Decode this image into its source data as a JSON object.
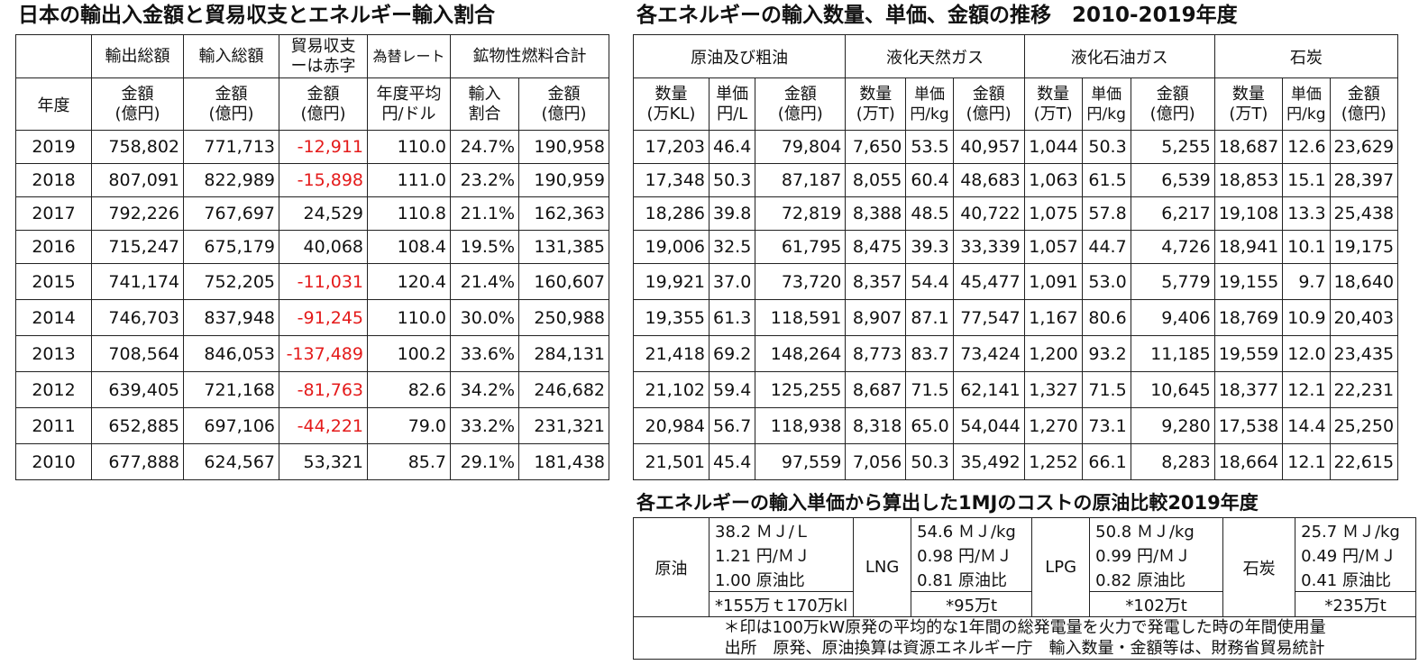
{
  "left_title": "日本の輸出入金額と貿易収支とエネルギー輸入割合",
  "right_title": "各エネルギーの輸入数量、単価、金額の推移　2010-2019年度",
  "bottom_title": "各エネルギーの輸入単価から算出した1MJのコストの原油比較2019年度",
  "left_table": {
    "group_headers": [
      "輸出総額",
      "輸入総額",
      "貿易収支\nーは赤字",
      "為替レート",
      "鉱物性燃料合計"
    ],
    "year_header": "年度",
    "sub_headers": [
      "金額\n(億円)",
      "金額\n(億円)",
      "金額\n(億円)",
      "年度平均\n円/ドル",
      "輸入\n割合",
      "金額\n(億円)"
    ],
    "rows": [
      {
        "year": "2019",
        "exports": "758,802",
        "imports": "771,713",
        "balance": "-12,911",
        "rate": "110.0",
        "share": "24.7%",
        "fuel": "190,958"
      },
      {
        "year": "2018",
        "exports": "807,091",
        "imports": "822,989",
        "balance": "-15,898",
        "rate": "111.0",
        "share": "23.2%",
        "fuel": "190,959"
      },
      {
        "year": "2017",
        "exports": "792,226",
        "imports": "767,697",
        "balance": "24,529",
        "rate": "110.8",
        "share": "21.1%",
        "fuel": "162,363"
      },
      {
        "year": "2016",
        "exports": "715,247",
        "imports": "675,179",
        "balance": "40,068",
        "rate": "108.4",
        "share": "19.5%",
        "fuel": "131,385"
      },
      {
        "year": "2015",
        "exports": "741,174",
        "imports": "752,205",
        "balance": "-11,031",
        "rate": "120.4",
        "share": "21.4%",
        "fuel": "160,607"
      },
      {
        "year": "2014",
        "exports": "746,703",
        "imports": "837,948",
        "balance": "-91,245",
        "rate": "110.0",
        "share": "30.0%",
        "fuel": "250,988"
      },
      {
        "year": "2013",
        "exports": "708,564",
        "imports": "846,053",
        "balance": "-137,489",
        "rate": "100.2",
        "share": "33.6%",
        "fuel": "284,131"
      },
      {
        "year": "2012",
        "exports": "639,405",
        "imports": "721,168",
        "balance": "-81,763",
        "rate": "82.6",
        "share": "34.2%",
        "fuel": "246,682"
      },
      {
        "year": "2011",
        "exports": "652,885",
        "imports": "697,106",
        "balance": "-44,221",
        "rate": "79.0",
        "share": "33.2%",
        "fuel": "231,321"
      },
      {
        "year": "2010",
        "exports": "677,888",
        "imports": "624,567",
        "balance": "53,321",
        "rate": "85.7",
        "share": "29.1%",
        "fuel": "181,438"
      }
    ]
  },
  "right_table": {
    "group_headers": [
      "原油及び粗油",
      "液化天然ガス",
      "液化石油ガス",
      "石炭"
    ],
    "sub_headers": [
      "数量\n(万KL)",
      "単価\n円/L",
      "金額\n(億円)",
      "数量\n(万T)",
      "単価\n円/kg",
      "金額\n(億円)",
      "数量\n(万T)",
      "単価\n円/kg",
      "金額\n(億円)",
      "数量\n(万T)",
      "単価\n円/kg",
      "金額\n(億円)"
    ],
    "rows": [
      [
        "17,203",
        "46.4",
        "79,804",
        "7,650",
        "53.5",
        "40,957",
        "1,044",
        "50.3",
        "5,255",
        "18,687",
        "12.6",
        "23,629"
      ],
      [
        "17,348",
        "50.3",
        "87,187",
        "8,055",
        "60.4",
        "48,683",
        "1,063",
        "61.5",
        "6,539",
        "18,853",
        "15.1",
        "28,397"
      ],
      [
        "18,286",
        "39.8",
        "72,819",
        "8,388",
        "48.5",
        "40,722",
        "1,075",
        "57.8",
        "6,217",
        "19,108",
        "13.3",
        "25,438"
      ],
      [
        "19,006",
        "32.5",
        "61,795",
        "8,475",
        "39.3",
        "33,339",
        "1,057",
        "44.7",
        "4,726",
        "18,941",
        "10.1",
        "19,175"
      ],
      [
        "19,921",
        "37.0",
        "73,720",
        "8,357",
        "54.4",
        "45,477",
        "1,091",
        "53.0",
        "5,779",
        "19,155",
        "9.7",
        "18,640"
      ],
      [
        "19,355",
        "61.3",
        "118,591",
        "8,907",
        "87.1",
        "77,547",
        "1,167",
        "80.6",
        "9,406",
        "18,769",
        "10.9",
        "20,403"
      ],
      [
        "21,418",
        "69.2",
        "148,264",
        "8,773",
        "83.7",
        "73,424",
        "1,200",
        "93.2",
        "11,185",
        "19,559",
        "12.0",
        "23,435"
      ],
      [
        "21,102",
        "59.4",
        "125,255",
        "8,687",
        "71.5",
        "62,141",
        "1,327",
        "71.5",
        "10,645",
        "18,377",
        "12.1",
        "22,231"
      ],
      [
        "20,984",
        "56.7",
        "118,938",
        "8,318",
        "65.0",
        "54,044",
        "1,270",
        "73.1",
        "9,280",
        "17,538",
        "14.4",
        "25,250"
      ],
      [
        "21,501",
        "45.4",
        "97,559",
        "7,056",
        "50.3",
        "35,492",
        "1,252",
        "66.1",
        "8,283",
        "18,664",
        "12.1",
        "22,615"
      ]
    ]
  },
  "cost_table": {
    "items": [
      {
        "name": "原油",
        "energy": "38.2 ＭＪ/Ｌ",
        "cost": "1.21 円/ＭＪ",
        "ratio": "1.00 原油比",
        "note": "*155万ｔ170万kl"
      },
      {
        "name": "LNG",
        "energy": "54.6 ＭＪ/kg",
        "cost": "0.98 円/ＭＪ",
        "ratio": "0.81 原油比",
        "note": "*95万t"
      },
      {
        "name": "LPG",
        "energy": "50.8 ＭＪ/kg",
        "cost": "0.99 円/ＭＪ",
        "ratio": "0.82 原油比",
        "note": "*102万t"
      },
      {
        "name": "石炭",
        "energy": "25.7 ＭＪ/kg",
        "cost": "0.49 円/ＭＪ",
        "ratio": "0.41 原油比",
        "note": "*235万t"
      }
    ],
    "footnote_1": "＊印は100万kW原発の平均的な1年間の総発電量を火力で発電した時の年間使用量",
    "footnote_2": "出所　原発、原油換算は資源エネルギー庁　輸入数量・金額等は、財務省貿易統計"
  },
  "colors": {
    "negative": "#e41a1a",
    "text": "#111111",
    "border": "#222222"
  }
}
